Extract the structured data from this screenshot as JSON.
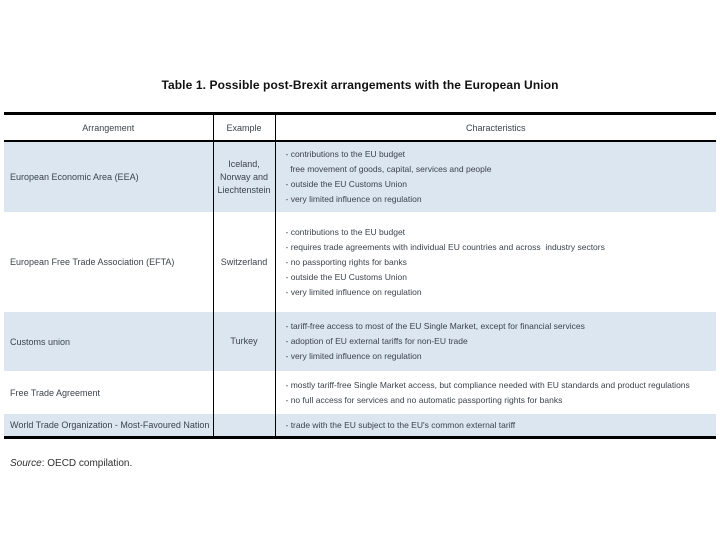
{
  "title": "Table 1. Possible post-Brexit arrangements with the European Union",
  "table": {
    "columns": [
      "Arrangement",
      "Example",
      "Characteristics"
    ],
    "rows": [
      {
        "arrangement": "European Economic Area (EEA)",
        "example": "Iceland,\nNorway and\nLiechtenstein",
        "characteristics": [
          "- contributions to the EU budget",
          "  free movement of goods, capital, services and people",
          "- outside the EU Customs Union",
          "- very limited influence on regulation"
        ]
      },
      {
        "arrangement": "European Free Trade Association (EFTA)",
        "example": "Switzerland",
        "characteristics": [
          "- contributions to the EU budget",
          "- requires trade agreements with individual EU countries and across  industry sectors",
          "- no passporting rights for banks",
          "- outside the EU Customs Union",
          "- very limited influence on regulation"
        ]
      },
      {
        "arrangement": "Customs union",
        "example": "Turkey",
        "characteristics": [
          "- tariff-free access to most of the EU Single Market, except for financial services",
          "- adoption of EU external tariffs for non-EU trade",
          "- very limited influence on regulation"
        ]
      },
      {
        "arrangement": "Free Trade Agreement",
        "example": "",
        "characteristics": [
          "- mostly tariff-free Single Market access, but compliance needed with EU standards and product regulations",
          "- no full access for services and no automatic passporting rights for banks"
        ]
      },
      {
        "arrangement": "World Trade Organization - Most-Favoured Nation",
        "example": "",
        "characteristics": [
          "- trade with the EU subject to the EU's common external tariff"
        ]
      }
    ]
  },
  "source": {
    "label": "Source",
    "text": ": OECD compilation."
  },
  "colors": {
    "row_highlight": "#dce6f1",
    "border": "#000000",
    "text": "#3c434d"
  }
}
